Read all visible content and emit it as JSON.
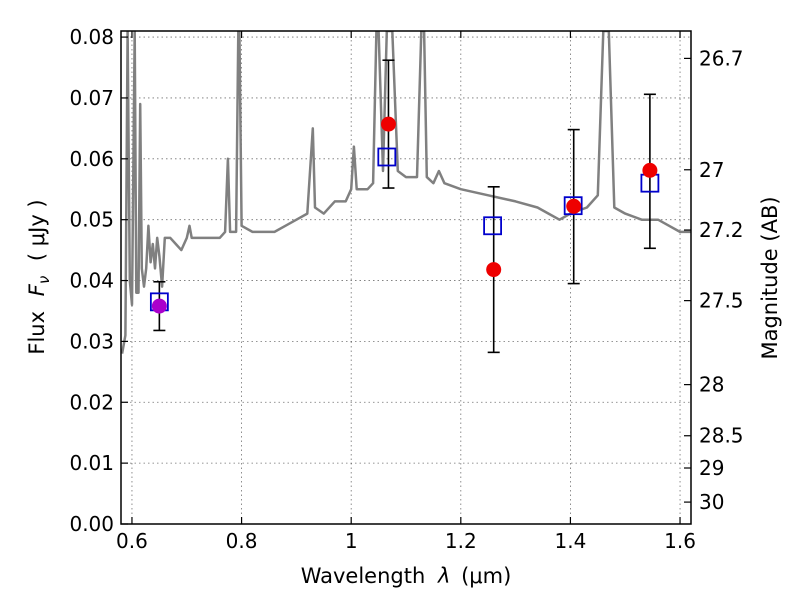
{
  "chart_data": {
    "type": "scatter",
    "xlabel_prefix": "Wavelength",
    "xlabel_symbol": "λ",
    "xlabel_unit": "(μm)",
    "ylabel_prefix": "Flux",
    "ylabel_symbol": "F",
    "ylabel_subscript": "ν",
    "ylabel_unit": "( μJy )",
    "y2label": "Magnitude (AB)",
    "xlim": [
      0.58,
      1.62
    ],
    "ylim": [
      0.0,
      0.081
    ],
    "grid": true,
    "x_ticks": [
      0.6,
      0.8,
      1.0,
      1.2,
      1.4,
      1.6
    ],
    "x_tick_labels": [
      "0.6",
      "0.8",
      "1",
      "1.2",
      "1.4",
      "1.6"
    ],
    "y_ticks": [
      0.0,
      0.01,
      0.02,
      0.03,
      0.04,
      0.05,
      0.06,
      0.07,
      0.08
    ],
    "y_tick_labels": [
      "0.00",
      "0.01",
      "0.02",
      "0.03",
      "0.04",
      "0.05",
      "0.06",
      "0.07",
      "0.08"
    ],
    "y2_ticks": [
      {
        "label": "26.7",
        "flux": 0.0765
      },
      {
        "label": "27",
        "flux": 0.0582
      },
      {
        "label": "27.2",
        "flux": 0.0483
      },
      {
        "label": "27.5",
        "flux": 0.0367
      },
      {
        "label": "28",
        "flux": 0.0229
      },
      {
        "label": "28.5",
        "flux": 0.0145
      },
      {
        "label": "29",
        "flux": 0.0092
      },
      {
        "label": "30",
        "flux": 0.0036
      }
    ],
    "spectrum": {
      "color": "#808080",
      "points": [
        [
          0.582,
          0.028
        ],
        [
          0.588,
          0.031
        ],
        [
          0.592,
          0.081
        ],
        [
          0.596,
          0.04
        ],
        [
          0.6,
          0.036
        ],
        [
          0.605,
          0.081
        ],
        [
          0.608,
          0.038
        ],
        [
          0.612,
          0.038
        ],
        [
          0.615,
          0.069
        ],
        [
          0.618,
          0.042
        ],
        [
          0.622,
          0.039
        ],
        [
          0.626,
          0.042
        ],
        [
          0.63,
          0.049
        ],
        [
          0.634,
          0.043
        ],
        [
          0.638,
          0.046
        ],
        [
          0.642,
          0.042
        ],
        [
          0.646,
          0.047
        ],
        [
          0.65,
          0.044
        ],
        [
          0.655,
          0.039
        ],
        [
          0.66,
          0.047
        ],
        [
          0.67,
          0.047
        ],
        [
          0.68,
          0.046
        ],
        [
          0.69,
          0.045
        ],
        [
          0.7,
          0.047
        ],
        [
          0.705,
          0.049
        ],
        [
          0.709,
          0.047
        ],
        [
          0.72,
          0.047
        ],
        [
          0.74,
          0.047
        ],
        [
          0.76,
          0.047
        ],
        [
          0.77,
          0.048
        ],
        [
          0.775,
          0.06
        ],
        [
          0.779,
          0.048
        ],
        [
          0.79,
          0.048
        ],
        [
          0.794,
          0.081
        ],
        [
          0.796,
          0.081
        ],
        [
          0.8,
          0.049
        ],
        [
          0.82,
          0.048
        ],
        [
          0.84,
          0.048
        ],
        [
          0.86,
          0.048
        ],
        [
          0.88,
          0.049
        ],
        [
          0.9,
          0.05
        ],
        [
          0.92,
          0.051
        ],
        [
          0.93,
          0.065
        ],
        [
          0.934,
          0.052
        ],
        [
          0.95,
          0.051
        ],
        [
          0.97,
          0.053
        ],
        [
          0.99,
          0.053
        ],
        [
          1.0,
          0.055
        ],
        [
          1.005,
          0.062
        ],
        [
          1.01,
          0.055
        ],
        [
          1.03,
          0.055
        ],
        [
          1.04,
          0.056
        ],
        [
          1.046,
          0.081
        ],
        [
          1.05,
          0.081
        ],
        [
          1.058,
          0.058
        ],
        [
          1.065,
          0.081
        ],
        [
          1.075,
          0.081
        ],
        [
          1.085,
          0.058
        ],
        [
          1.1,
          0.057
        ],
        [
          1.12,
          0.057
        ],
        [
          1.128,
          0.081
        ],
        [
          1.133,
          0.081
        ],
        [
          1.138,
          0.057
        ],
        [
          1.15,
          0.056
        ],
        [
          1.16,
          0.058
        ],
        [
          1.17,
          0.056
        ],
        [
          1.2,
          0.055
        ],
        [
          1.25,
          0.054
        ],
        [
          1.3,
          0.053
        ],
        [
          1.34,
          0.052
        ],
        [
          1.36,
          0.051
        ],
        [
          1.38,
          0.05
        ],
        [
          1.4,
          0.051
        ],
        [
          1.43,
          0.052
        ],
        [
          1.45,
          0.054
        ],
        [
          1.46,
          0.081
        ],
        [
          1.47,
          0.081
        ],
        [
          1.48,
          0.052
        ],
        [
          1.5,
          0.051
        ],
        [
          1.53,
          0.05
        ],
        [
          1.56,
          0.05
        ],
        [
          1.58,
          0.049
        ],
        [
          1.6,
          0.048
        ],
        [
          1.62,
          0.048
        ]
      ]
    },
    "model_points": {
      "color": "#0000cc",
      "marker": "open-square",
      "points": [
        [
          0.65,
          0.0365
        ],
        [
          1.065,
          0.0603
        ],
        [
          1.258,
          0.049
        ],
        [
          1.405,
          0.0523
        ],
        [
          1.545,
          0.056
        ]
      ]
    },
    "observed_points": {
      "marker": "filled-circle",
      "points": [
        {
          "x": 0.65,
          "y": 0.0358,
          "err_low": 0.0318,
          "err_high": 0.0398,
          "color": "#aa00cc"
        },
        {
          "x": 1.068,
          "y": 0.0657,
          "err_low": 0.0552,
          "err_high": 0.0762,
          "color": "#ee0000"
        },
        {
          "x": 1.26,
          "y": 0.0418,
          "err_low": 0.0282,
          "err_high": 0.0554,
          "color": "#ee0000"
        },
        {
          "x": 1.406,
          "y": 0.0522,
          "err_low": 0.0395,
          "err_high": 0.0648,
          "color": "#ee0000"
        },
        {
          "x": 1.545,
          "y": 0.0581,
          "err_low": 0.0453,
          "err_high": 0.0706,
          "color": "#ee0000"
        }
      ]
    }
  }
}
